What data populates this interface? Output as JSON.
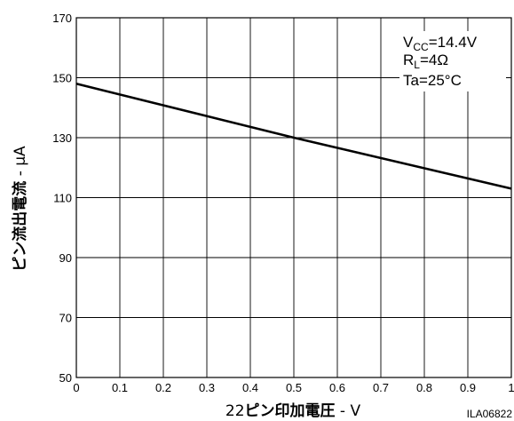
{
  "chart_data": {
    "type": "line",
    "xlabel": {
      "prefix": "22",
      "main": "ピン印加電圧",
      "unit": " - V"
    },
    "ylabel": {
      "main": "ピン流出電流",
      "unit": " - μA"
    },
    "xlim": [
      0,
      1
    ],
    "ylim": [
      50,
      170
    ],
    "xticks": [
      0,
      0.1,
      0.2,
      0.3,
      0.4,
      0.5,
      0.6,
      0.7,
      0.8,
      0.9,
      1
    ],
    "xtick_labels": [
      "0",
      "0.1",
      "0.2",
      "0.3",
      "0.4",
      "0.5",
      "0.6",
      "0.7",
      "0.8",
      "0.9",
      "1"
    ],
    "yticks": [
      50,
      70,
      90,
      110,
      130,
      150,
      170
    ],
    "ytick_labels": [
      "50",
      "70",
      "90",
      "110",
      "130",
      "150",
      "170"
    ],
    "grid": true,
    "series": [
      {
        "x": [
          0,
          0.5,
          1
        ],
        "y": [
          148,
          130,
          113
        ],
        "color": "#000000"
      }
    ],
    "conditions": [
      {
        "main": "V",
        "sub": "CC",
        "rest": "=14.4V"
      },
      {
        "main": "R",
        "sub": "L",
        "rest": "=4Ω"
      },
      {
        "main": "Ta=25°C",
        "sub": "",
        "rest": ""
      }
    ],
    "figure_code": "ILA06822"
  }
}
